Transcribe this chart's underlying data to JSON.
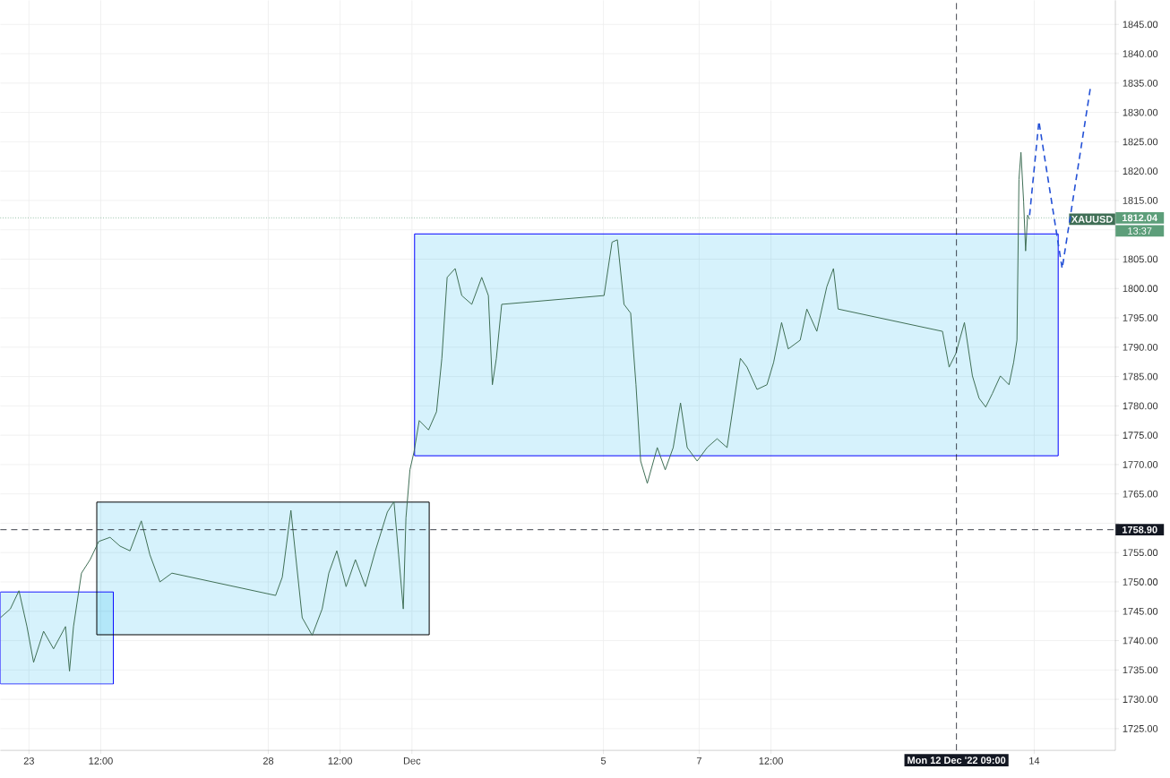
{
  "chart_data": {
    "type": "line",
    "xlim": [
      "2022-11-22T09:40",
      "2022-12-15T16:40"
    ],
    "ylim": [
      1721.3,
      1849.1
    ],
    "xticks": [
      {
        "value": "2022-11-23",
        "label": "23"
      },
      {
        "value": "2022-11-24T12:00",
        "label": "12:00"
      },
      {
        "value": "2022-11-28",
        "label": "28"
      },
      {
        "value": "2022-11-29T12:00",
        "label": "12:00"
      },
      {
        "value": "2022-12-01",
        "label": "Dec"
      },
      {
        "value": "2022-12-05",
        "label": "5"
      },
      {
        "value": "2022-12-07",
        "label": "7"
      },
      {
        "value": "2022-12-08T12:00",
        "label": "12:00"
      },
      {
        "value": "2022-12-14",
        "label": "14"
      }
    ],
    "yticks": [
      {
        "value": 1725,
        "label": "1725.00"
      },
      {
        "value": 1730,
        "label": "1730.00"
      },
      {
        "value": 1735,
        "label": "1735.00"
      },
      {
        "value": 1740,
        "label": "1740.00"
      },
      {
        "value": 1745,
        "label": "1745.00"
      },
      {
        "value": 1750,
        "label": "1750.00"
      },
      {
        "value": 1755,
        "label": "1755.00"
      },
      {
        "value": 1760,
        "label": null
      },
      {
        "value": 1765,
        "label": "1765.00"
      },
      {
        "value": 1770,
        "label": "1770.00"
      },
      {
        "value": 1775,
        "label": "1775.00"
      },
      {
        "value": 1780,
        "label": "1780.00"
      },
      {
        "value": 1785,
        "label": "1785.00"
      },
      {
        "value": 1790,
        "label": "1790.00"
      },
      {
        "value": 1795,
        "label": "1795.00"
      },
      {
        "value": 1800,
        "label": "1800.00"
      },
      {
        "value": 1805,
        "label": "1805.00"
      },
      {
        "value": 1810,
        "label": null
      },
      {
        "value": 1815,
        "label": "1815.00"
      },
      {
        "value": 1820,
        "label": "1820.00"
      },
      {
        "value": 1825,
        "label": "1825.00"
      },
      {
        "value": 1830,
        "label": "1830.00"
      },
      {
        "value": 1835,
        "label": "1835.00"
      },
      {
        "value": 1840,
        "label": "1840.00"
      },
      {
        "value": 1845,
        "label": "1845.00"
      }
    ],
    "grid": true,
    "series": [
      {
        "type": "area",
        "color": "#0000ff",
        "x": [
          "2022-11-22T09:40",
          "2022-11-24T18:20",
          "2022-11-24T18:20",
          "2022-11-22T09:40",
          "2022-11-22T09:40"
        ],
        "values": [
          1748.3,
          1748.3,
          1732.6,
          1732.6,
          1748.3
        ]
      },
      {
        "type": "area",
        "color": "#000000",
        "x": [
          "2022-11-24T10:00",
          "2022-12-01T08:40",
          "2022-12-01T08:40",
          "2022-11-24T10:00",
          "2022-11-24T10:00"
        ],
        "values": [
          1763.6,
          1763.6,
          1741.0,
          1741.0,
          1763.6
        ]
      },
      {
        "type": "area",
        "color": "#0000ff",
        "x": [
          "2022-12-01T01:20",
          "2022-12-14T12:00",
          "2022-12-14T12:00",
          "2022-12-01T01:20",
          "2022-12-01T01:20"
        ],
        "values": [
          1809.3,
          1809.3,
          1771.5,
          1771.5,
          1809.3
        ]
      },
      {
        "name": "XAUUSD",
        "color": "#3f6e55",
        "x": [
          "2022-11-22T09:40",
          "2022-11-22T14:40",
          "2022-11-22T19:00",
          "2022-11-22T23:00",
          "2022-11-23T02:20",
          "2022-11-23T07:20",
          "2022-11-23T12:20",
          "2022-11-23T18:20",
          "2022-11-23T20:20",
          "2022-11-23T22:20",
          "2022-11-24T02:20",
          "2022-11-24T06:40",
          "2022-11-24T11:00",
          "2022-11-24T16:40",
          "2022-11-24T21:40",
          "2022-11-25T02:40",
          "2022-11-25T08:20",
          "2022-11-25T12:40",
          "2022-11-25T17:40",
          "2022-11-25T23:40",
          "2022-11-28T03:40",
          "2022-11-28T07:00",
          "2022-11-28T11:20",
          "2022-11-28T13:40",
          "2022-11-28T17:00",
          "2022-11-28T22:00",
          "2022-11-29T03:00",
          "2022-11-29T06:20",
          "2022-11-29T10:20",
          "2022-11-29T15:00",
          "2022-11-29T19:40",
          "2022-11-30T00:40",
          "2022-11-30T05:40",
          "2022-11-30T11:40",
          "2022-11-30T15:00",
          "2022-11-30T17:20",
          "2022-11-30T19:40",
          "2022-11-30T21:00",
          "2022-11-30T23:00",
          "2022-12-01T01:00",
          "2022-12-01T03:40",
          "2022-12-01T08:20",
          "2022-12-01T12:20",
          "2022-12-01T15:00",
          "2022-12-01T17:40",
          "2022-12-01T21:40",
          "2022-12-02T01:00",
          "2022-12-02T06:00",
          "2022-12-02T11:00",
          "2022-12-02T14:20",
          "2022-12-02T16:20",
          "2022-12-02T18:20",
          "2022-12-02T21:00",
          "2022-12-05T00:20",
          "2022-12-05T04:20",
          "2022-12-05T07:00",
          "2022-12-05T10:20",
          "2022-12-05T13:40",
          "2022-12-05T16:20",
          "2022-12-05T18:40",
          "2022-12-05T22:00",
          "2022-12-06T03:00",
          "2022-12-06T07:00",
          "2022-12-06T11:00",
          "2022-12-06T14:40",
          "2022-12-06T18:00",
          "2022-12-06T23:00",
          "2022-12-07T04:00",
          "2022-12-07T09:00",
          "2022-12-07T14:00",
          "2022-12-07T17:20",
          "2022-12-07T20:40",
          "2022-12-08T00:00",
          "2022-12-08T05:00",
          "2022-12-08T10:00",
          "2022-12-08T13:20",
          "2022-12-08T17:20",
          "2022-12-08T20:40",
          "2022-12-09T02:40",
          "2022-12-09T06:00",
          "2022-12-09T11:00",
          "2022-12-09T16:00",
          "2022-12-09T19:20",
          "2022-12-09T21:40",
          "2022-12-12T02:00",
          "2022-12-12T05:20",
          "2022-12-12T08:40",
          "2022-12-12T13:00",
          "2022-12-12T17:00",
          "2022-12-12T20:20",
          "2022-12-12T23:40",
          "2022-12-13T03:00",
          "2022-12-13T07:00",
          "2022-12-13T11:20",
          "2022-12-13T13:40",
          "2022-12-13T15:20",
          "2022-12-13T16:20",
          "2022-12-13T17:20",
          "2022-12-13T18:40",
          "2022-12-13T19:40",
          "2022-12-13T20:40",
          "2022-12-13T21:40"
        ],
        "values": [
          1743.9,
          1745.4,
          1748.5,
          1742.4,
          1736.3,
          1741.6,
          1738.6,
          1742.4,
          1734.8,
          1742.4,
          1751.5,
          1753.8,
          1756.9,
          1757.6,
          1756.1,
          1755.3,
          1760.4,
          1754.6,
          1750.0,
          1751.5,
          1747.7,
          1750.8,
          1762.2,
          1754.6,
          1743.9,
          1740.9,
          1745.4,
          1751.5,
          1755.3,
          1749.2,
          1753.8,
          1749.2,
          1755.3,
          1761.9,
          1763.7,
          1754.6,
          1745.4,
          1760.9,
          1769.1,
          1772.1,
          1777.5,
          1775.9,
          1779.0,
          1788.1,
          1801.9,
          1803.4,
          1798.8,
          1797.3,
          1801.9,
          1798.8,
          1783.6,
          1788.1,
          1797.3,
          1798.8,
          1807.9,
          1808.3,
          1797.3,
          1795.8,
          1783.6,
          1770.6,
          1766.8,
          1772.9,
          1769.1,
          1772.9,
          1780.5,
          1772.9,
          1770.6,
          1772.9,
          1774.4,
          1772.9,
          1780.5,
          1788.1,
          1786.6,
          1782.8,
          1783.6,
          1787.4,
          1794.2,
          1789.7,
          1791.2,
          1796.5,
          1792.7,
          1800.3,
          1803.4,
          1796.5,
          1792.7,
          1786.6,
          1788.9,
          1794.2,
          1785.1,
          1781.3,
          1779.8,
          1782.1,
          1785.1,
          1783.6,
          1787.4,
          1791.2,
          1818.6,
          1823.2,
          1814.8,
          1806.4,
          1812.5,
          1811.8
        ]
      },
      {
        "type": "line",
        "line_style": "dashed",
        "color": "#2451d6",
        "x": [
          "2022-12-13T21:40",
          "2022-12-14T02:20",
          "2022-12-14T14:00",
          "2022-12-15T04:20"
        ],
        "values": [
          1812.5,
          1828.5,
          1803.4,
          1834.6
        ]
      }
    ],
    "ref_lines": [
      {
        "axis": "y",
        "value": 1812.04,
        "label": "1812.04",
        "color": "#5d9e7a",
        "line_style": "dotted"
      },
      {
        "axis": "y",
        "value": 1758.9,
        "label": "1758.90",
        "color": "#131722",
        "line_style": "dashed"
      },
      {
        "axis": "x",
        "value": "2022-12-12T09:00",
        "label": "Mon 12 Dec '22  09:00",
        "color": "#131722",
        "line_style": "dashed"
      }
    ],
    "annotations": [
      "13:37"
    ]
  }
}
